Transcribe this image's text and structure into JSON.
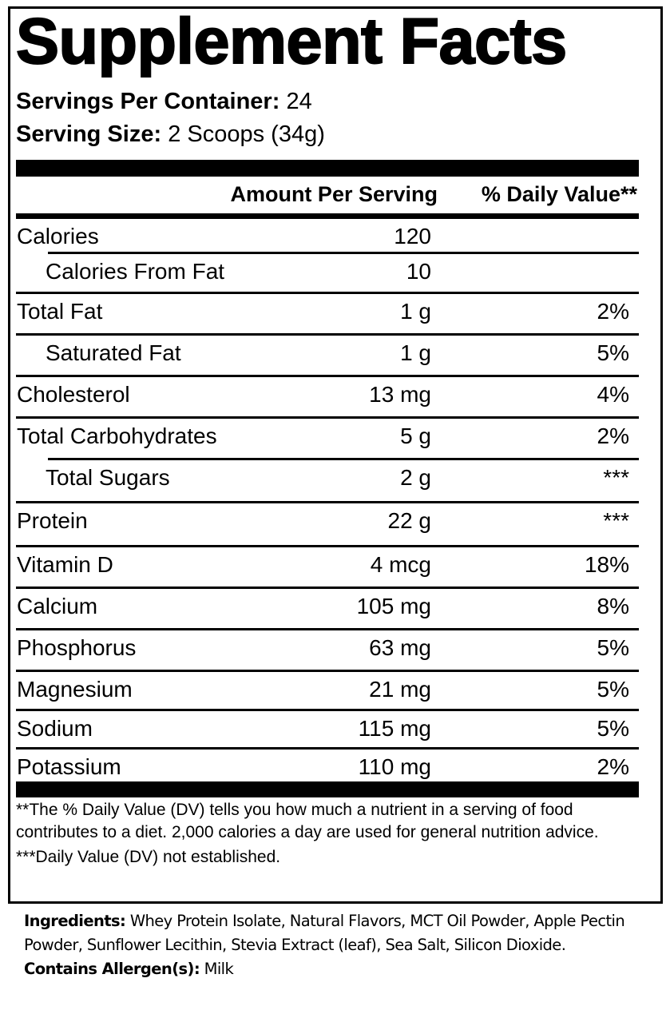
{
  "title": "Supplement Facts",
  "servings": {
    "per_container_label": "Servings Per Container:",
    "per_container_value": "24",
    "size_label": "Serving Size:",
    "size_value": "2 Scoops (34g)"
  },
  "header": {
    "amount": "Amount Per Serving",
    "dv": "% Daily Value**"
  },
  "rows": [
    {
      "name": "Calories",
      "amount": "120",
      "dv": ""
    },
    {
      "name": "Calories From Fat",
      "amount": "10",
      "dv": ""
    },
    {
      "name": "Total Fat",
      "amount": "1 g",
      "dv": "2%"
    },
    {
      "name": "Saturated Fat",
      "amount": "1 g",
      "dv": "5%"
    },
    {
      "name": "Cholesterol",
      "amount": "13 mg",
      "dv": "4%"
    },
    {
      "name": "Total Carbohydrates",
      "amount": "5 g",
      "dv": "2%"
    },
    {
      "name": "Total Sugars",
      "amount": "2 g",
      "dv": "***"
    },
    {
      "name": "Protein",
      "amount": "22 g",
      "dv": "***"
    },
    {
      "name": "Vitamin D",
      "amount": "4 mcg",
      "dv": "18%"
    },
    {
      "name": "Calcium",
      "amount": "105 mg",
      "dv": "8%"
    },
    {
      "name": "Phosphorus",
      "amount": "63 mg",
      "dv": "5%"
    },
    {
      "name": "Magnesium",
      "amount": "21 mg",
      "dv": "5%"
    },
    {
      "name": "Sodium",
      "amount": "115 mg",
      "dv": "5%"
    },
    {
      "name": "Potassium",
      "amount": "110 mg",
      "dv": "2%"
    }
  ],
  "footnotes": {
    "dv_note": "**The % Daily Value (DV) tells you how much a nutrient in a serving of food contributes to a diet. 2,000 calories a day are used for general nutrition advice.",
    "not_established": "***Daily Value (DV) not established."
  },
  "ingredients": {
    "label": "Ingredients:",
    "text": " Whey Protein Isolate, Natural Flavors, MCT Oil Powder, Apple Pectin Powder, Sunflower Lecithin, Stevia Extract (leaf), Sea Salt, Silicon Dioxide.",
    "allergen_label": "Contains Allergen(s):",
    "allergen_text": " Milk"
  }
}
